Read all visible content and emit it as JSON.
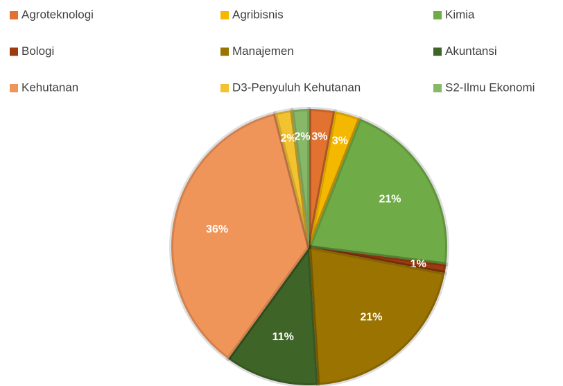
{
  "chart_data": {
    "type": "pie",
    "categories": [
      "Agroteknologi",
      "Agribisnis",
      "Kimia",
      "Bologi",
      "Manajemen",
      "Akuntansi",
      "Kehutanan",
      "D3-Penyuluh Kehutanan",
      "S2-Ilmu Ekonomi"
    ],
    "values": [
      3,
      3,
      21,
      1,
      21,
      11,
      36,
      2,
      2
    ],
    "value_labels": [
      "3%",
      "3%",
      "21%",
      "1%",
      "21%",
      "11%",
      "36%",
      "2%",
      "2%"
    ],
    "colors": [
      "#e2722f",
      "#f5b800",
      "#6fab46",
      "#9c3b10",
      "#9a7300",
      "#3e6428",
      "#f0955a",
      "#f2c230",
      "#86b868"
    ],
    "legend": "top"
  }
}
